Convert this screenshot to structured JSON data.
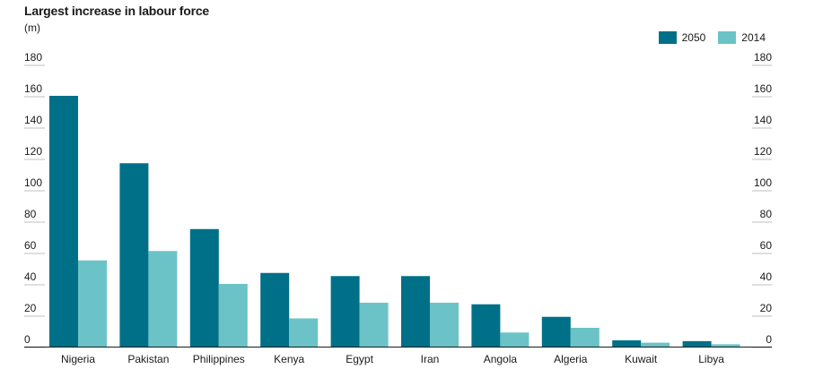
{
  "chart_data": {
    "type": "bar",
    "title": "Largest increase in labour force",
    "unit_label": "(m)",
    "categories": [
      "Nigeria",
      "Pakistan",
      "Philippines",
      "Kenya",
      "Egypt",
      "Iran",
      "Angola",
      "Algeria",
      "Kuwait",
      "Libya"
    ],
    "series": [
      {
        "name": "2050",
        "color": "#007088",
        "values": [
          160,
          117,
          75,
          47,
          45,
          45,
          27,
          19,
          4,
          3.5
        ]
      },
      {
        "name": "2014",
        "color": "#6bc3c7",
        "values": [
          55,
          61,
          40,
          18,
          28,
          28,
          9,
          12,
          2.5,
          1.5
        ]
      }
    ],
    "ylim": [
      0,
      180
    ],
    "yticks": [
      "0",
      "20",
      "40",
      "60",
      "80",
      "100",
      "120",
      "140",
      "160",
      "180"
    ],
    "legend_position": "top-right",
    "grid": true,
    "axis_both_sides": true
  }
}
